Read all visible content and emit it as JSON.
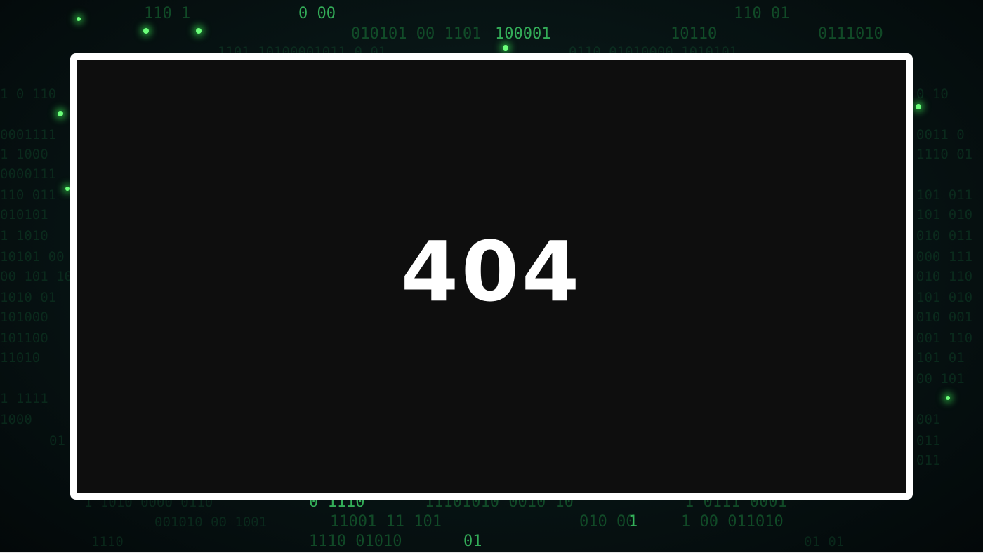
{
  "error": {
    "code": "404"
  },
  "colors": {
    "frame_border": "#ffffff",
    "panel_background": "#0e0e0e",
    "code_text": "#ffffff",
    "background_accent": "#1a7a3a"
  },
  "background": {
    "type": "binary-matrix-pattern"
  }
}
